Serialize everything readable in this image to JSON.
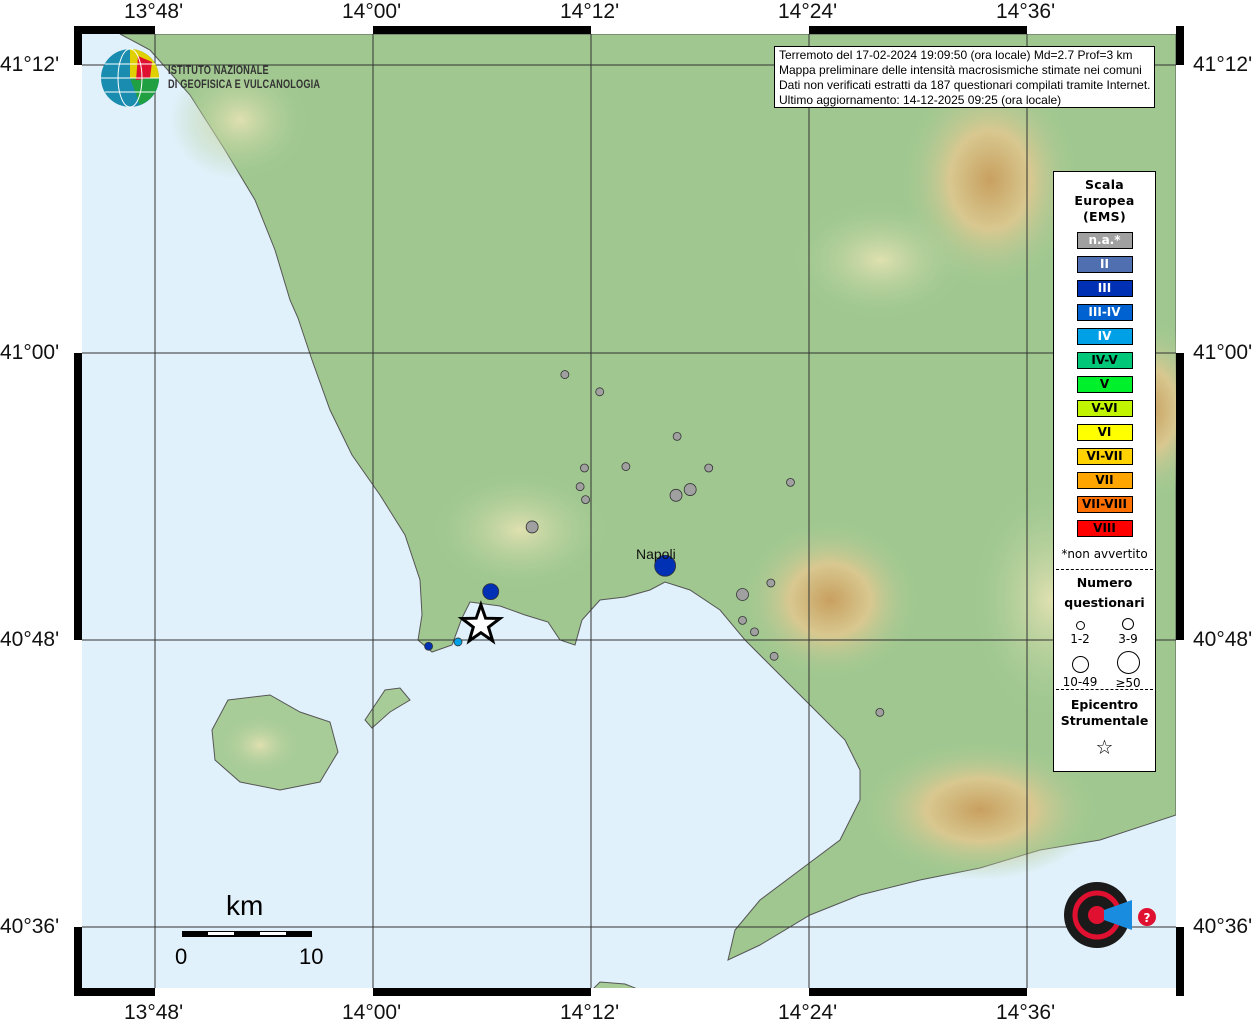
{
  "info": {
    "line1": "Terremoto del 17-02-2024 19:09:50 (ora locale) Md=2.7 Prof=3 km",
    "line2": "Mappa preliminare delle intensità macrosismiche stimate nei comuni",
    "line3": "Dati non verificati estratti da 187 questionari compilati tramite Internet.",
    "line4": "Ultimo aggiornamento: 14-12-2025 09:25 (ora locale)"
  },
  "logo": {
    "ingv_line1": "ISTITUTO NAZIONALE",
    "ingv_line2": "DI GEOFISICA E VULCANOLOGIA",
    "hsit": "www.haisentitoilterremoto.it"
  },
  "axes": {
    "lon_labels": [
      "13°48'",
      "14°00'",
      "14°12'",
      "14°24'",
      "14°36'"
    ],
    "lat_labels": [
      "41°12'",
      "41°00'",
      "40°48'",
      "40°36'"
    ]
  },
  "legend": {
    "title1": "Scala",
    "title2": "Europea",
    "title3": "(EMS)",
    "classes": [
      {
        "label": "n.a.*",
        "color": "#a0a0a0",
        "text": "#ffffff"
      },
      {
        "label": "II",
        "color": "#4f6fb0",
        "text": "#ffffff"
      },
      {
        "label": "III",
        "color": "#0030b4",
        "text": "#ffffff"
      },
      {
        "label": "III-IV",
        "color": "#0062d0",
        "text": "#ffffff"
      },
      {
        "label": "IV",
        "color": "#00a0e6",
        "text": "#ffffff"
      },
      {
        "label": "IV-V",
        "color": "#00c878",
        "text": "#000000"
      },
      {
        "label": "V",
        "color": "#00f02c",
        "text": "#000000"
      },
      {
        "label": "V-VI",
        "color": "#c0f400",
        "text": "#000000"
      },
      {
        "label": "VI",
        "color": "#ffff00",
        "text": "#000000"
      },
      {
        "label": "VI-VII",
        "color": "#ffd200",
        "text": "#000000"
      },
      {
        "label": "VII",
        "color": "#ffa500",
        "text": "#000000"
      },
      {
        "label": "VII-VIII",
        "color": "#ff7000",
        "text": "#000000"
      },
      {
        "label": "VIII",
        "color": "#ff0000",
        "text": "#000000"
      }
    ],
    "note": "*non avvertito",
    "count_title1": "Numero",
    "count_title2": "questionari",
    "counts": [
      "1-2",
      "3-9",
      "10-49",
      "≥50"
    ],
    "epi_title1": "Epicentro",
    "epi_title2": "Strumentale"
  },
  "places": [
    {
      "name": "Napoli",
      "lon": 14.268,
      "lat": 40.852
    }
  ],
  "scale_bar": {
    "unit": "km",
    "start": "0",
    "end": "10"
  },
  "epicenter": {
    "lon": 14.099,
    "lat": 40.811
  },
  "observations": [
    {
      "lon": 14.176,
      "lat": 40.985,
      "intensity": "n.a.*",
      "count": "1-2"
    },
    {
      "lon": 14.208,
      "lat": 40.973,
      "intensity": "n.a.*",
      "count": "1-2"
    },
    {
      "lon": 14.279,
      "lat": 40.942,
      "intensity": "n.a.*",
      "count": "1-2"
    },
    {
      "lon": 14.194,
      "lat": 40.92,
      "intensity": "n.a.*",
      "count": "1-2"
    },
    {
      "lon": 14.232,
      "lat": 40.921,
      "intensity": "n.a.*",
      "count": "1-2"
    },
    {
      "lon": 14.308,
      "lat": 40.92,
      "intensity": "n.a.*",
      "count": "1-2"
    },
    {
      "lon": 14.19,
      "lat": 40.907,
      "intensity": "n.a.*",
      "count": "1-2"
    },
    {
      "lon": 14.195,
      "lat": 40.898,
      "intensity": "n.a.*",
      "count": "1-2"
    },
    {
      "lon": 14.383,
      "lat": 40.91,
      "intensity": "n.a.*",
      "count": "1-2"
    },
    {
      "lon": 14.365,
      "lat": 40.84,
      "intensity": "n.a.*",
      "count": "1-2"
    },
    {
      "lon": 14.339,
      "lat": 40.814,
      "intensity": "n.a.*",
      "count": "1-2"
    },
    {
      "lon": 14.35,
      "lat": 40.806,
      "intensity": "n.a.*",
      "count": "1-2"
    },
    {
      "lon": 14.368,
      "lat": 40.789,
      "intensity": "n.a.*",
      "count": "1-2"
    },
    {
      "lon": 14.465,
      "lat": 40.75,
      "intensity": "n.a.*",
      "count": "1-2"
    },
    {
      "lon": 14.278,
      "lat": 40.901,
      "intensity": "n.a.*",
      "count": "3-9"
    },
    {
      "lon": 14.291,
      "lat": 40.905,
      "intensity": "n.a.*",
      "count": "3-9"
    },
    {
      "lon": 14.146,
      "lat": 40.879,
      "intensity": "n.a.*",
      "count": "3-9"
    },
    {
      "lon": 14.339,
      "lat": 40.832,
      "intensity": "n.a.*",
      "count": "3-9"
    },
    {
      "lon": 14.268,
      "lat": 40.852,
      "intensity": "III",
      "count": "≥50"
    },
    {
      "lon": 14.108,
      "lat": 40.834,
      "intensity": "III",
      "count": "10-49"
    },
    {
      "lon": 14.051,
      "lat": 40.796,
      "intensity": "III",
      "count": "1-2"
    },
    {
      "lon": 14.078,
      "lat": 40.799,
      "intensity": "IV",
      "count": "1-2"
    }
  ]
}
